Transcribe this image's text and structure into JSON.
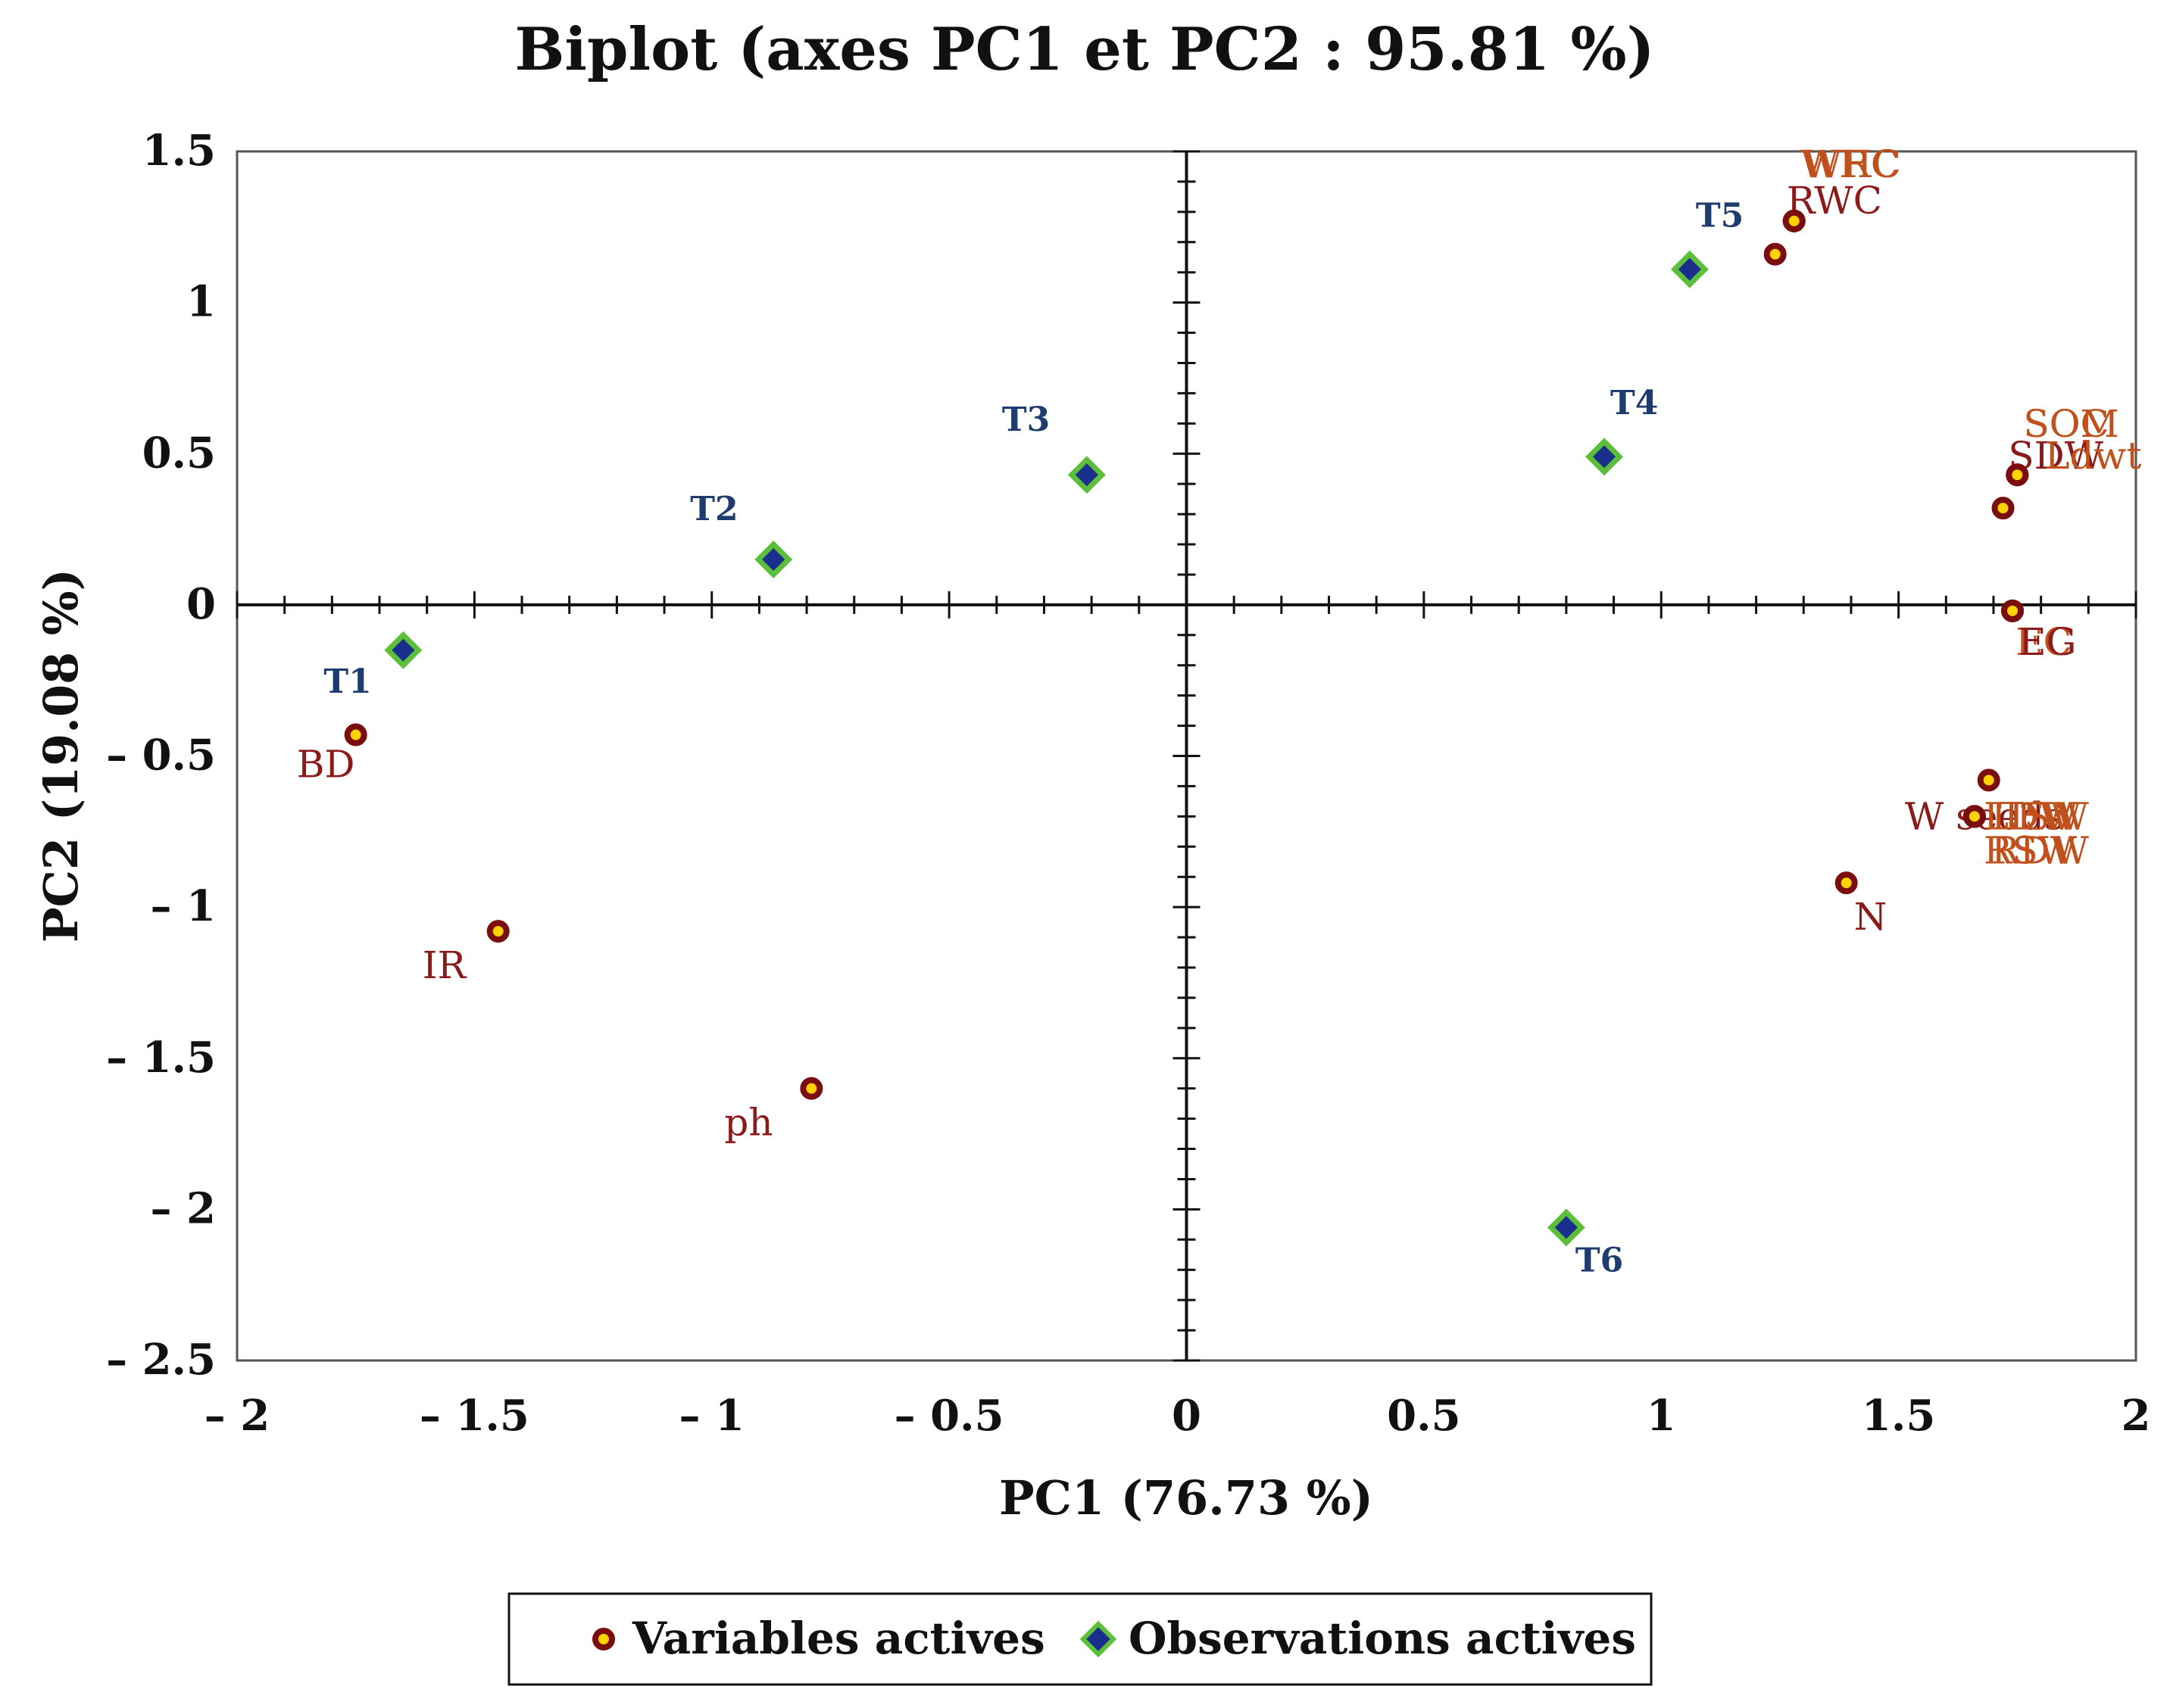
{
  "chart_data": {
    "type": "scatter",
    "title": "Biplot (axes PC1 et PC2 : 95.81 %)",
    "xlabel": "PC1 (76.73 %)",
    "ylabel": "PC2 (19.08 %)",
    "xlim": [
      -2,
      2
    ],
    "ylim": [
      -2.5,
      1.5
    ],
    "xticks": [
      -2,
      -1.5,
      -1,
      -0.5,
      0,
      0.5,
      1,
      1.5,
      2
    ],
    "xtick_labels": [
      "– 2",
      "– 1.5",
      "– 1",
      "– 0.5",
      "0",
      "0.5",
      "1",
      "1.5",
      "2"
    ],
    "yticks": [
      1.5,
      1,
      0.5,
      0,
      -0.5,
      -1,
      -1.5,
      -2,
      -2.5
    ],
    "ytick_labels": [
      "1.5",
      "1",
      "0.5",
      "0",
      "– 0.5",
      "– 1",
      "– 1.5",
      "– 2",
      "– 2.5"
    ],
    "grid": false,
    "legend_position": "bottom",
    "colors": {
      "variable_label": "#8b1a1a",
      "variable_label_overlap": "#c0501c",
      "variable_marker_fill": "#ffd200",
      "variable_marker_stroke": "#7a0d0d",
      "observation_label": "#1f3c6e",
      "observation_marker_fill": "#1a2e8c",
      "observation_marker_stroke": "#5cbf3a"
    },
    "series": [
      {
        "name": "Variables actives",
        "points": [
          {
            "x": 1.24,
            "y": 1.16,
            "label": ""
          },
          {
            "x": 1.28,
            "y": 1.27,
            "label": "RWC"
          },
          {
            "x": 1.28,
            "y": 1.27,
            "label": "WHC"
          },
          {
            "x": 1.28,
            "y": 1.27,
            "label": "WRC"
          },
          {
            "x": 1.72,
            "y": 0.32,
            "label": ""
          },
          {
            "x": 1.75,
            "y": 0.43,
            "label": "SOM"
          },
          {
            "x": 1.75,
            "y": 0.43,
            "label": "SOC"
          },
          {
            "x": 1.75,
            "y": 0.43,
            "label": "SDW"
          },
          {
            "x": 1.75,
            "y": 0.43,
            "label": "Ldwt"
          },
          {
            "x": 1.74,
            "y": -0.02,
            "label": "EC"
          },
          {
            "x": 1.74,
            "y": -0.02,
            "label": "EG"
          },
          {
            "x": 1.69,
            "y": -0.58,
            "label": ""
          },
          {
            "x": 1.66,
            "y": -0.7,
            "label": "W seeds"
          },
          {
            "x": 1.66,
            "y": -0.7,
            "label": "LDW"
          },
          {
            "x": 1.66,
            "y": -0.7,
            "label": "LFW"
          },
          {
            "x": 1.66,
            "y": -0.7,
            "label": "TSW"
          },
          {
            "x": 1.66,
            "y": -0.7,
            "label": "RSW"
          },
          {
            "x": 1.66,
            "y": -0.7,
            "label": "RDW"
          },
          {
            "x": 1.39,
            "y": -0.92,
            "label": "N"
          },
          {
            "x": -1.75,
            "y": -0.43,
            "label": "BD"
          },
          {
            "x": -1.45,
            "y": -1.08,
            "label": "IR"
          },
          {
            "x": -0.79,
            "y": -1.6,
            "label": "ph"
          }
        ]
      },
      {
        "name": "Observations actives",
        "points": [
          {
            "x": -1.65,
            "y": -0.15,
            "label": "T1"
          },
          {
            "x": -0.87,
            "y": 0.15,
            "label": "T2"
          },
          {
            "x": -0.21,
            "y": 0.43,
            "label": "T3"
          },
          {
            "x": 0.88,
            "y": 0.49,
            "label": "T4"
          },
          {
            "x": 1.06,
            "y": 1.11,
            "label": "T5"
          },
          {
            "x": 0.8,
            "y": -2.06,
            "label": "T6"
          }
        ]
      }
    ]
  }
}
